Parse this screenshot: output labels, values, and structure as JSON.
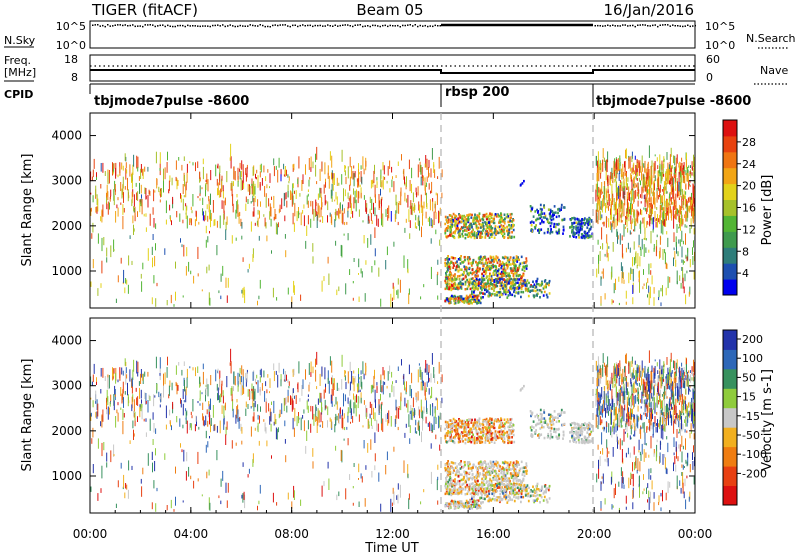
{
  "header": {
    "title": "TIGER (fitACF)",
    "beam": "Beam 05",
    "date": "16/Jan/2016"
  },
  "status_panels": {
    "nsky_label": "N.Sky",
    "nsky_ticks": [
      "10^5",
      "10^0"
    ],
    "nsearch_label": "N.Search",
    "freq_label_1": "Freq.",
    "freq_label_2": "[MHz]",
    "freq_ticks": [
      "18",
      "8"
    ],
    "nave_ticks": [
      "60",
      "0"
    ],
    "nave_label": "Nave",
    "cpid_label": "CPID",
    "cpid_segments": [
      {
        "label": "tbjmode7pulse -8600",
        "start_h": 0,
        "end_h": 14
      },
      {
        "label": "rbsp 200",
        "start_h": 14,
        "end_h": 20
      },
      {
        "label": "tbjmode7pulse -8600",
        "start_h": 20,
        "end_h": 24
      }
    ]
  },
  "chart_data": [
    {
      "type": "heatmap",
      "name": "power",
      "xlabel": "",
      "ylabel": "Slant Range [km]",
      "xlim_hours": [
        0,
        24
      ],
      "ylim": [
        180,
        4500
      ],
      "y_ticks": [
        "4000",
        "3000",
        "2000",
        "1000"
      ],
      "y_tick_values": [
        4000,
        3000,
        2000,
        1000
      ],
      "colorbar": {
        "label": "Power [dB]",
        "ticks": [
          "28",
          "24",
          "20",
          "16",
          "12",
          "8",
          "4"
        ],
        "tick_values": [
          28,
          24,
          20,
          16,
          12,
          8,
          4
        ],
        "range": [
          0,
          32
        ],
        "colors": [
          "#0000ee",
          "#1d4fb0",
          "#2e7d7a",
          "#3f9a4e",
          "#52b534",
          "#a6c12a",
          "#e3d21a",
          "#f2a515",
          "#f07512",
          "#e8420f",
          "#dd1010"
        ]
      },
      "regions": [
        {
          "start_h": 0,
          "end_h": 14,
          "range_km": [
            180,
            3550
          ],
          "dense_km": [
            1950,
            3300
          ],
          "level": 24
        },
        {
          "start_h": 14,
          "end_h": 17.3,
          "range_km": [
            300,
            2500
          ],
          "level": 20
        },
        {
          "start_h": 16.8,
          "end_h": 20,
          "range_km": [
            1700,
            2500
          ],
          "level": 8
        },
        {
          "start_h": 20,
          "end_h": 24,
          "range_km": [
            180,
            3550
          ],
          "dense_km": [
            1950,
            3300
          ],
          "level": 22
        }
      ]
    },
    {
      "type": "heatmap",
      "name": "velocity",
      "xlabel": "Time UT",
      "ylabel": "Slant Range [km]",
      "xlim_hours": [
        0,
        24
      ],
      "ylim": [
        180,
        4500
      ],
      "x_ticks": [
        "00:00",
        "04:00",
        "08:00",
        "12:00",
        "16:00",
        "20:00",
        "00:00"
      ],
      "x_tick_hours": [
        0,
        4,
        8,
        12,
        16,
        20,
        24
      ],
      "y_ticks": [
        "4000",
        "3000",
        "2000",
        "1000"
      ],
      "y_tick_values": [
        4000,
        3000,
        2000,
        1000
      ],
      "colorbar": {
        "label": "Velocity [m s-1]",
        "ticks": [
          "200",
          "100",
          "50",
          "15",
          "-15",
          "-50",
          "-100",
          "-200"
        ],
        "colors": [
          "#2233aa",
          "#2d67b8",
          "#37915e",
          "#8fcc3c",
          "#c8c8c8",
          "#f2b020",
          "#ef7d12",
          "#e84012",
          "#dd1010"
        ]
      },
      "regions": [
        {
          "start_h": 0,
          "end_h": 14,
          "range_km": [
            180,
            3550
          ],
          "dense_km": [
            1950,
            3300
          ],
          "level": "mixed"
        },
        {
          "start_h": 14,
          "end_h": 17.3,
          "range_km": [
            300,
            2500
          ],
          "level": "-15 to 15"
        },
        {
          "start_h": 14.2,
          "end_h": 16.8,
          "range_km": [
            1700,
            2100
          ],
          "level": "-100"
        },
        {
          "start_h": 20,
          "end_h": 24,
          "range_km": [
            180,
            3550
          ],
          "dense_km": [
            1950,
            3300
          ],
          "level": "mixed"
        }
      ]
    }
  ]
}
